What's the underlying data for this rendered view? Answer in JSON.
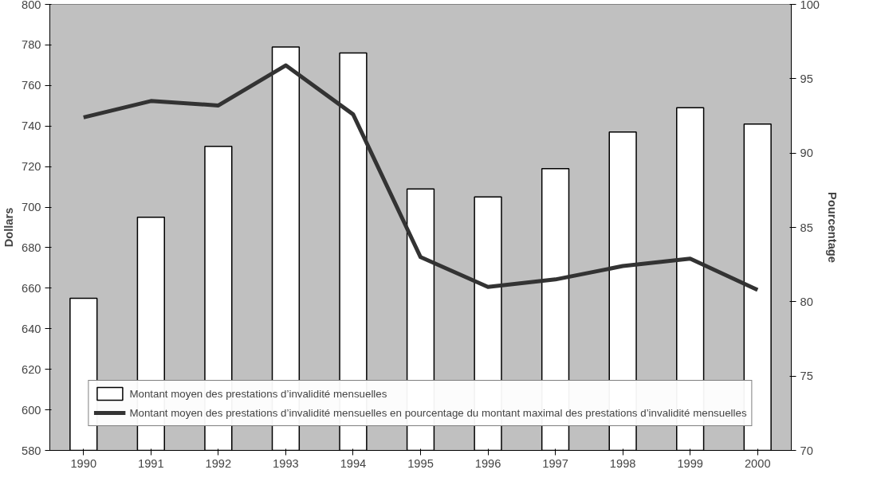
{
  "chart_data": {
    "type": "bar",
    "categories": [
      "1990",
      "1991",
      "1992",
      "1993",
      "1994",
      "1995",
      "1996",
      "1997",
      "1998",
      "1999",
      "2000"
    ],
    "series": [
      {
        "name": "Montant moyen des prestations d’invalidité mensuelles",
        "color": "#ffffff",
        "values": [
          655,
          695,
          730,
          779,
          776,
          709,
          705,
          719,
          737,
          749,
          741
        ]
      },
      {
        "name": "Montant moyen des prestations d’invalidité mensuelles en pourcentage du montant maximal des prestations d’invalidité mensuelles",
        "type": "line",
        "axis": "y2",
        "color": "#333333",
        "values": [
          92.4,
          93.5,
          93.2,
          95.9,
          92.6,
          83.0,
          81.0,
          81.5,
          82.4,
          82.9,
          80.8
        ]
      }
    ],
    "ylabel": "Dollars",
    "y2label": "Pourcentage",
    "ylim": [
      580,
      800
    ],
    "yticks": [
      580,
      600,
      620,
      640,
      660,
      680,
      700,
      720,
      740,
      760,
      780,
      800
    ],
    "y2lim": [
      70,
      100
    ],
    "y2ticks": [
      70,
      75,
      80,
      85,
      90,
      95,
      100
    ],
    "legend": "bottom",
    "line_style": "solid"
  }
}
